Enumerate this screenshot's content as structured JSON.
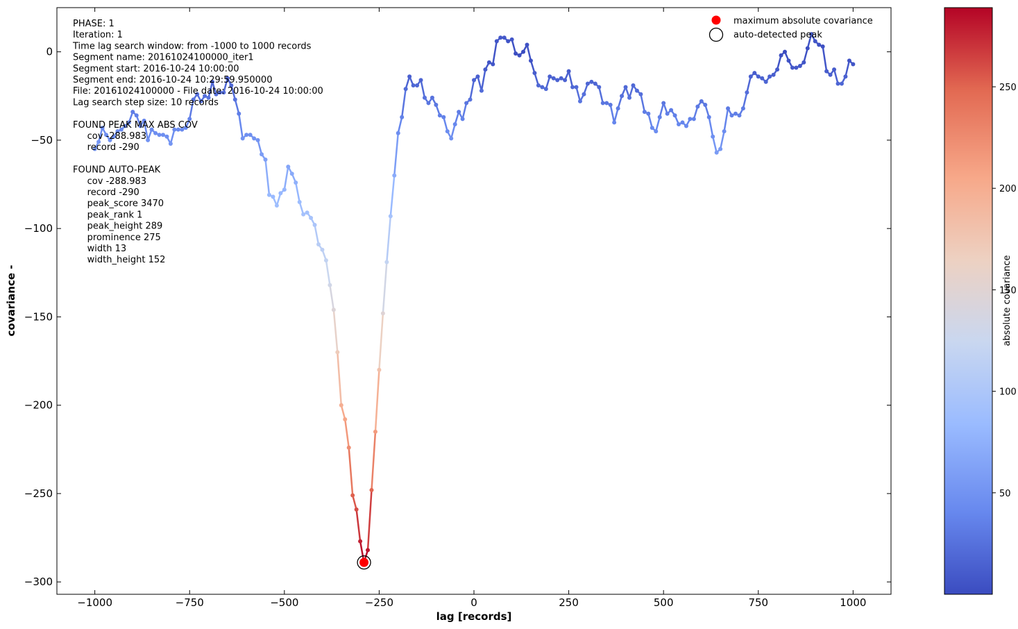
{
  "chart_data": {
    "type": "line",
    "xlabel": "lag [records]",
    "ylabel": "covariance  -",
    "xlim": [
      -1100,
      1100
    ],
    "ylim": [
      -307,
      25
    ],
    "x_ticks": [
      -1000,
      -750,
      -500,
      -250,
      0,
      250,
      500,
      750,
      1000
    ],
    "x_tick_labels": [
      "−1000",
      "−750",
      "−500",
      "−250",
      "0",
      "250",
      "500",
      "750",
      "1000"
    ],
    "y_ticks": [
      0,
      -50,
      -100,
      -150,
      -200,
      -250,
      -300
    ],
    "y_tick_labels": [
      "0",
      "−50",
      "−100",
      "−150",
      "−200",
      "−250",
      "−300"
    ],
    "grid": false,
    "legend_placement": "top-right",
    "legend": [
      {
        "label": "maximum absolute covariance",
        "marker": "filled-circle",
        "color": "#ff0000"
      },
      {
        "label": "auto-detected peak",
        "marker": "open-circle",
        "color": "#000000"
      }
    ],
    "colorbar": {
      "label": "absolute covariance",
      "min": 0,
      "max": 289,
      "ticks": [
        50,
        100,
        150,
        200,
        250
      ],
      "colormap": "coolwarm",
      "stops": [
        "#3b4cc0",
        "#6788ee",
        "#9abbff",
        "#c9d7f0",
        "#edd1c2",
        "#f7a889",
        "#e26952",
        "#b40426"
      ]
    },
    "info_text": [
      "PHASE: 1",
      "Iteration: 1",
      "Time lag search window: from -1000 to 1000 records",
      "Segment name: 20161024100000_iter1",
      "Segment start: 2016-10-24 10:00:00",
      "Segment end: 2016-10-24 10:29:59.950000",
      "File: 20161024100000 - File date: 2016-10-24 10:00:00",
      "Lag search step size: 10 records",
      "",
      "FOUND PEAK MAX ABS COV",
      "     cov -288.983",
      "     record -290",
      "",
      "FOUND AUTO-PEAK",
      "     cov -288.983",
      "     record -290",
      "     peak_score 3470",
      "     peak_rank 1",
      "     peak_height 289",
      "     prominence 275",
      "     width 13",
      "     width_height 152"
    ],
    "max_point": {
      "x": -290,
      "y": -288.983
    },
    "auto_peak": {
      "x": -290,
      "y": -288.983
    },
    "x": [
      -1000,
      -990,
      -980,
      -970,
      -960,
      -950,
      -940,
      -930,
      -920,
      -910,
      -900,
      -890,
      -880,
      -870,
      -860,
      -850,
      -840,
      -830,
      -820,
      -810,
      -800,
      -790,
      -780,
      -770,
      -760,
      -750,
      -740,
      -730,
      -720,
      -710,
      -700,
      -690,
      -680,
      -670,
      -660,
      -650,
      -640,
      -630,
      -620,
      -610,
      -600,
      -590,
      -580,
      -570,
      -560,
      -550,
      -540,
      -530,
      -520,
      -510,
      -500,
      -490,
      -480,
      -470,
      -460,
      -450,
      -440,
      -430,
      -420,
      -410,
      -400,
      -390,
      -380,
      -370,
      -360,
      -350,
      -340,
      -330,
      -320,
      -310,
      -300,
      -290,
      -280,
      -270,
      -260,
      -250,
      -240,
      -230,
      -220,
      -210,
      -200,
      -190,
      -180,
      -170,
      -160,
      -150,
      -140,
      -130,
      -120,
      -110,
      -100,
      -90,
      -80,
      -70,
      -60,
      -50,
      -40,
      -30,
      -20,
      -10,
      0,
      10,
      20,
      30,
      40,
      50,
      60,
      70,
      80,
      90,
      100,
      110,
      120,
      130,
      140,
      150,
      160,
      170,
      180,
      190,
      200,
      210,
      220,
      230,
      240,
      250,
      260,
      270,
      280,
      290,
      300,
      310,
      320,
      330,
      340,
      350,
      360,
      370,
      380,
      390,
      400,
      410,
      420,
      430,
      440,
      450,
      460,
      470,
      480,
      490,
      500,
      510,
      520,
      530,
      540,
      550,
      560,
      570,
      580,
      590,
      600,
      610,
      620,
      630,
      640,
      650,
      660,
      670,
      680,
      690,
      700,
      710,
      720,
      730,
      740,
      750,
      760,
      770,
      780,
      790,
      800,
      810,
      820,
      830,
      840,
      850,
      860,
      870,
      880,
      890,
      900,
      910,
      920,
      930,
      940,
      950,
      960,
      970,
      980,
      990,
      1000
    ],
    "y": [
      -55,
      -51,
      -43,
      -47,
      -50,
      -48,
      -45,
      -44,
      -42,
      -40,
      -34,
      -36,
      -42,
      -39,
      -50,
      -44,
      -46,
      -47,
      -47,
      -48,
      -52,
      -44,
      -44,
      -44,
      -43,
      -38,
      -27,
      -24,
      -28,
      -25,
      -26,
      -17,
      -24,
      -23,
      -23,
      -15,
      -19,
      -27,
      -35,
      -49,
      -47,
      -47,
      -49,
      -50,
      -58,
      -61,
      -81,
      -82,
      -87,
      -80,
      -78,
      -65,
      -69,
      -74,
      -85,
      -92,
      -91,
      -94,
      -98,
      -109,
      -112,
      -118,
      -132,
      -146,
      -170,
      -200,
      -208,
      -224,
      -251,
      -259,
      -277,
      -289,
      -282,
      -248,
      -215,
      -180,
      -148,
      -119,
      -93,
      -70,
      -46,
      -37,
      -21,
      -14,
      -19,
      -19,
      -16,
      -26,
      -29,
      -26,
      -30,
      -36,
      -37,
      -45,
      -49,
      -41,
      -34,
      -38,
      -29,
      -27,
      -16,
      -14,
      -22,
      -10,
      -6,
      -7,
      6,
      8,
      8,
      6,
      7,
      -1,
      -2,
      0,
      4,
      -5,
      -12,
      -19,
      -20,
      -21,
      -14,
      -15,
      -16,
      -15,
      -16,
      -11,
      -20,
      -20,
      -28,
      -24,
      -18,
      -17,
      -18,
      -20,
      -29,
      -29,
      -30,
      -40,
      -32,
      -25,
      -20,
      -26,
      -19,
      -22,
      -24,
      -34,
      -35,
      -43,
      -45,
      -37,
      -29,
      -35,
      -33,
      -36,
      -41,
      -40,
      -42,
      -38,
      -38,
      -31,
      -28,
      -30,
      -37,
      -48,
      -57,
      -55,
      -45,
      -32,
      -36,
      -35,
      -36,
      -32,
      -23,
      -14,
      -12,
      -14,
      -15,
      -17,
      -14,
      -13,
      -10,
      -2,
      0,
      -5,
      -9,
      -9,
      -8,
      -6,
      2,
      10,
      6,
      4,
      3,
      -11,
      -13,
      -10,
      -18,
      -18,
      -14,
      -5,
      -7
    ]
  }
}
